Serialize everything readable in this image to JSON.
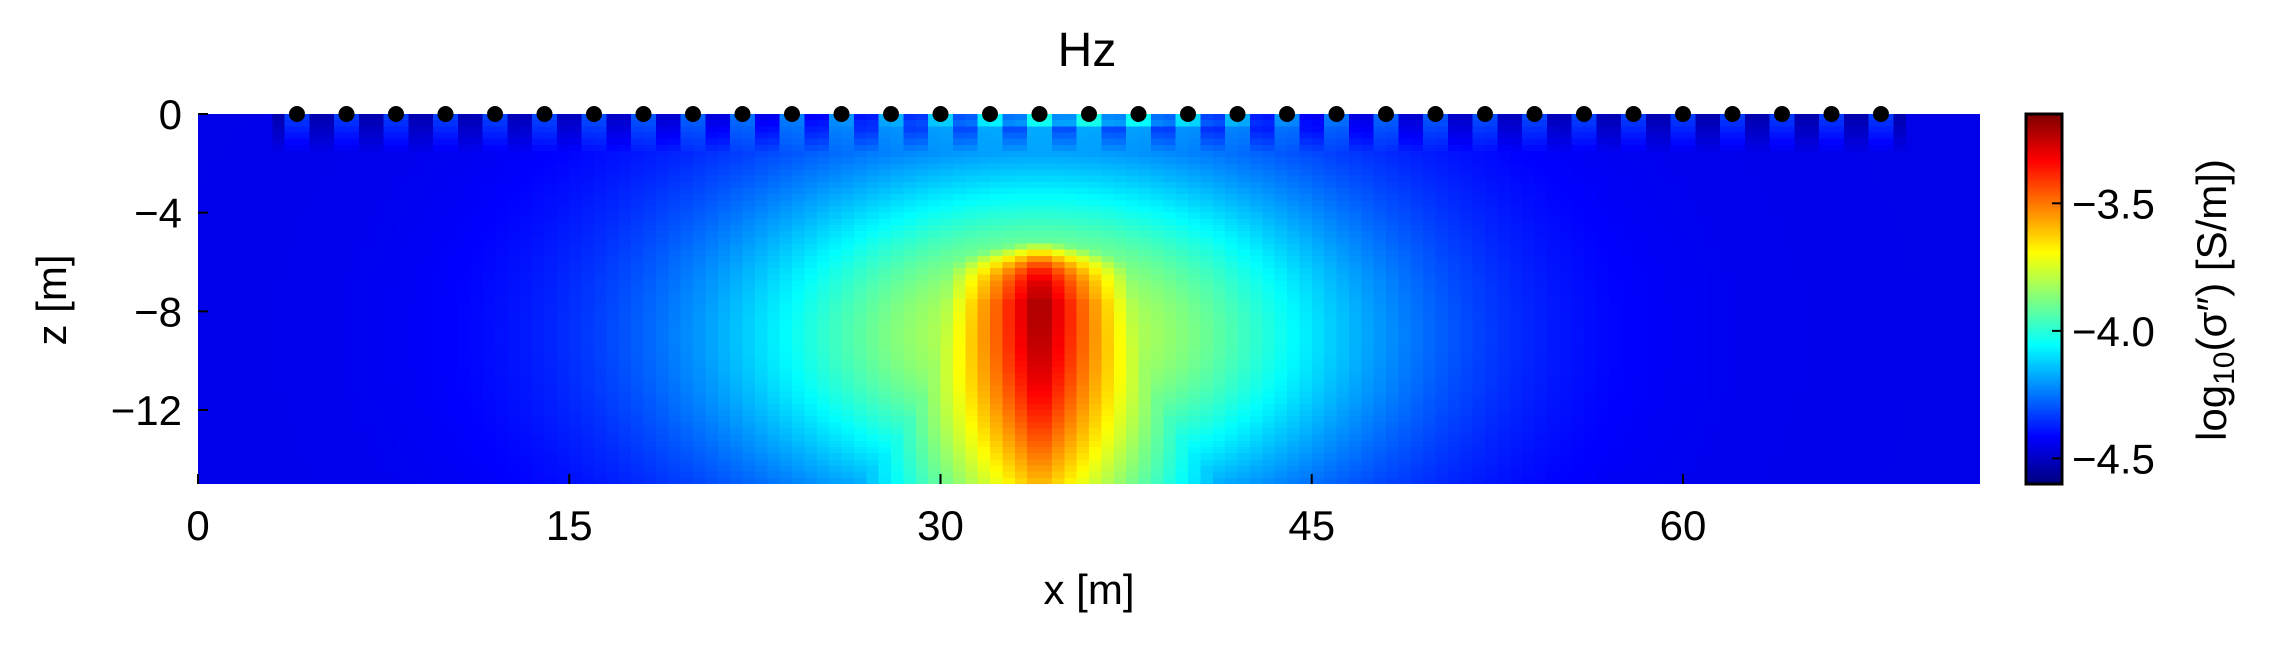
{
  "chart_data": {
    "type": "heatmap",
    "title": "Hz",
    "xlabel": "x [m]",
    "ylabel": "z [m]",
    "xlim": [
      0,
      72
    ],
    "ylim": [
      -15,
      0
    ],
    "x_ticks": [
      0,
      15,
      30,
      45,
      60
    ],
    "x_tick_labels": [
      "0",
      "15",
      "30",
      "45",
      "60"
    ],
    "y_ticks": [
      0,
      -4,
      -8,
      -12
    ],
    "y_tick_labels": [
      "0",
      "−4",
      "−8",
      "−12"
    ],
    "colormap": "jet",
    "colorbar": {
      "label_text": "log10(σ″) [S/m]",
      "vmin": -4.6,
      "vmax": -3.15,
      "ticks": [
        -3.5,
        -4.0,
        -4.5
      ],
      "tick_labels": [
        "−3.5",
        "−4.0",
        "−4.5"
      ]
    },
    "grid": false,
    "background_value": -4.45,
    "anomaly": {
      "peak_value": -3.18,
      "center_x": 34,
      "center_z": -7.5
    },
    "near_surface_low_band_z": [
      -1,
      -4
    ],
    "electrodes": {
      "z": 0,
      "x": [
        4,
        6,
        8,
        10,
        12,
        14,
        16,
        18,
        20,
        22,
        24,
        26,
        28,
        30,
        32,
        34,
        36,
        38,
        40,
        42,
        44,
        46,
        48,
        50,
        52,
        54,
        56,
        58,
        60,
        62,
        64,
        66,
        68
      ],
      "color": "#000000"
    }
  }
}
